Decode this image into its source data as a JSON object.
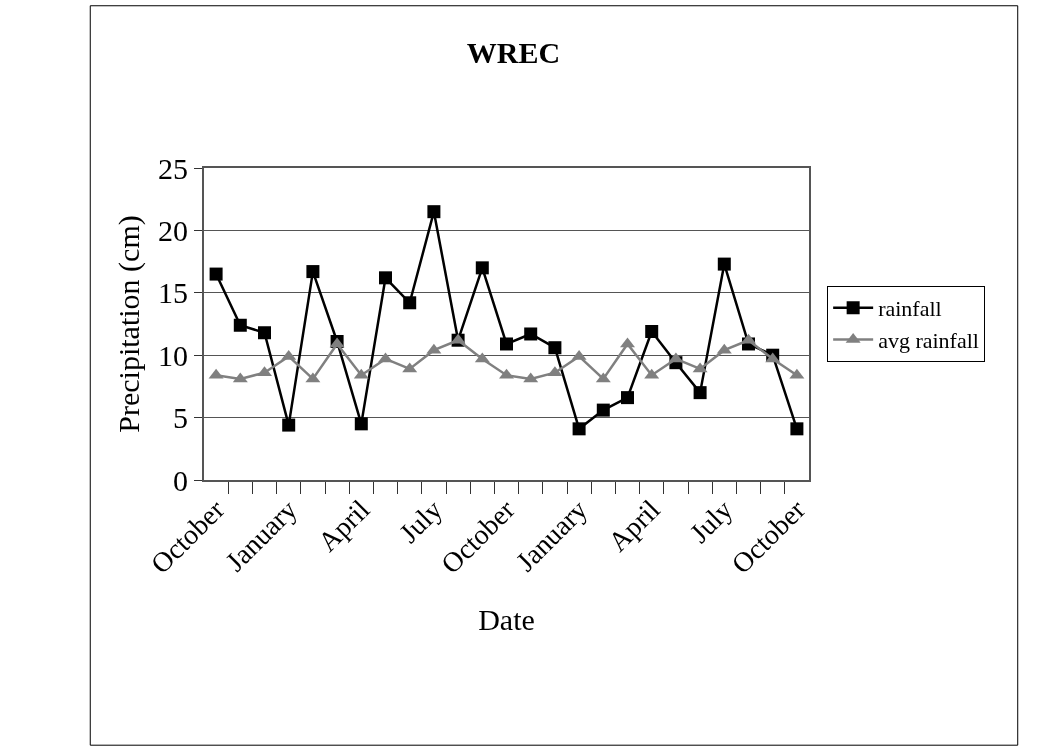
{
  "chart_data": {
    "type": "line",
    "title": "WREC",
    "xlabel": "Date",
    "ylabel": "Precipitation (cm)",
    "categories": [
      "October",
      null,
      null,
      "January",
      null,
      null,
      "April",
      null,
      null,
      "July",
      null,
      null,
      "October",
      null,
      null,
      "January",
      null,
      null,
      "April",
      null,
      null,
      "July",
      null,
      null,
      "October"
    ],
    "series": [
      {
        "name": "rainfall",
        "color": "#000000",
        "marker": "square",
        "values": [
          16.5,
          12.4,
          11.8,
          4.4,
          16.7,
          11.1,
          4.5,
          16.2,
          14.2,
          21.5,
          11.2,
          17.0,
          10.9,
          11.7,
          10.6,
          4.1,
          5.6,
          6.6,
          11.9,
          9.4,
          7.0,
          17.3,
          10.9,
          10.0,
          4.1
        ]
      },
      {
        "name": "avg rainfall",
        "color": "#808080",
        "marker": "triangle",
        "values": [
          8.4,
          8.1,
          8.6,
          9.9,
          8.1,
          10.9,
          8.4,
          9.7,
          8.9,
          10.4,
          11.2,
          9.7,
          8.4,
          8.1,
          8.6,
          9.9,
          8.1,
          10.9,
          8.4,
          9.7,
          8.9,
          10.4,
          11.2,
          9.7,
          8.4
        ]
      }
    ],
    "ylim": [
      0,
      25
    ],
    "yticks": [
      0,
      5,
      10,
      15,
      20,
      25
    ],
    "grid": "y",
    "legend": "right",
    "line_style": "solid"
  }
}
